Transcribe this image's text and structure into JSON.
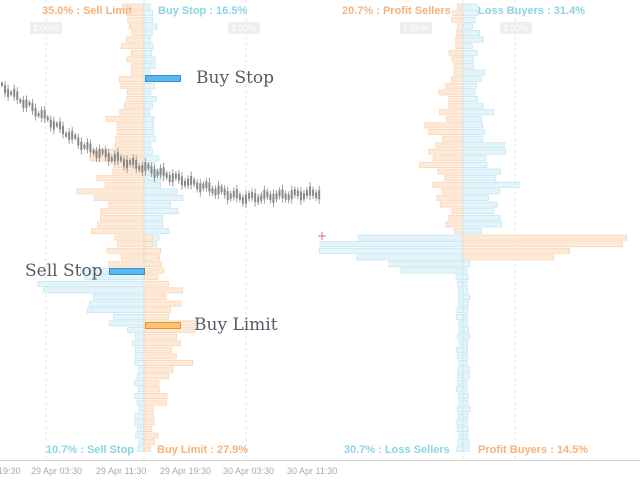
{
  "labels": {
    "top_left_orange": "35.0% : Sell Limit",
    "top_left_blue": "Buy Stop : 16.5%",
    "top_right_orange": "20.7% : Profit Sellers",
    "top_right_blue": "Loss Buyers : 31.4%",
    "bottom_left_blue": "10.7% : Sell Stop",
    "bottom_left_orange": "Buy Limit : 27.9%",
    "bottom_right_blue": "30.7% : Loss Sellers",
    "bottom_right_orange": "Profit Buyers : 14.5%"
  },
  "annotations": {
    "buy_stop": "Buy Stop",
    "sell_stop": "Sell Stop",
    "buy_limit": "Buy Limit"
  },
  "scale_tags": [
    "1.00%",
    "1.00%",
    "1.00%",
    "1.00%"
  ],
  "time_axis": [
    "19:30",
    "29 Apr 03:30",
    "29 Apr 11:30",
    "29 Apr 19:30",
    "30 Apr 03:30",
    "30 Apr 11:30"
  ],
  "colors": {
    "sell_orange": "#f7b27a",
    "buy_blue": "#8cd3e6",
    "hist_orange_fill": "#fde9d8",
    "hist_blue_fill": "#e3f4fa",
    "marker_blue": "#5bb8ee",
    "marker_orange": "#ffc26e",
    "candle": "#888888"
  }
}
